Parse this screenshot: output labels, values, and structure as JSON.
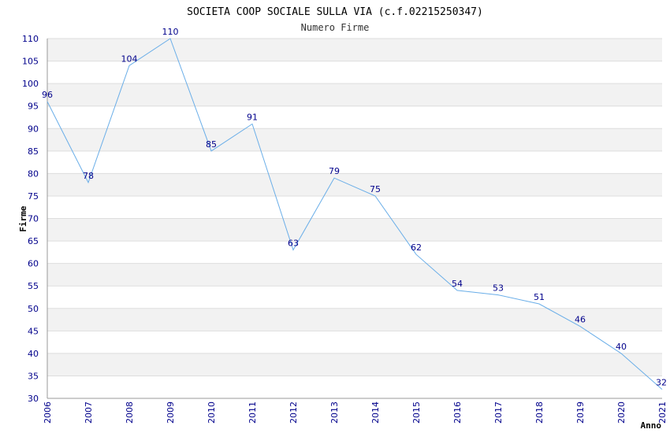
{
  "chart_data": {
    "type": "line",
    "title": "SOCIETA COOP SOCIALE SULLA VIA (c.f.02215250347)",
    "subtitle": "Numero Firme",
    "xlabel": "Anno",
    "ylabel": "Firme",
    "x": [
      2006,
      2007,
      2008,
      2009,
      2010,
      2011,
      2012,
      2013,
      2014,
      2015,
      2016,
      2017,
      2018,
      2019,
      2020,
      2021
    ],
    "series": [
      {
        "values": [
          96,
          78,
          104,
          110,
          85,
          91,
          63,
          79,
          75,
          62,
          54,
          53,
          51,
          46,
          40,
          32
        ]
      }
    ],
    "ylim": [
      30,
      110
    ],
    "yticks": [
      30,
      35,
      40,
      45,
      50,
      55,
      60,
      65,
      70,
      75,
      80,
      85,
      90,
      95,
      100,
      105,
      110
    ],
    "grid": true,
    "legend": "none",
    "colors": {
      "line": "#6aaee8",
      "band": "#f2f2f2",
      "grid": "#dddddd",
      "tick_text": "#00008b"
    }
  }
}
